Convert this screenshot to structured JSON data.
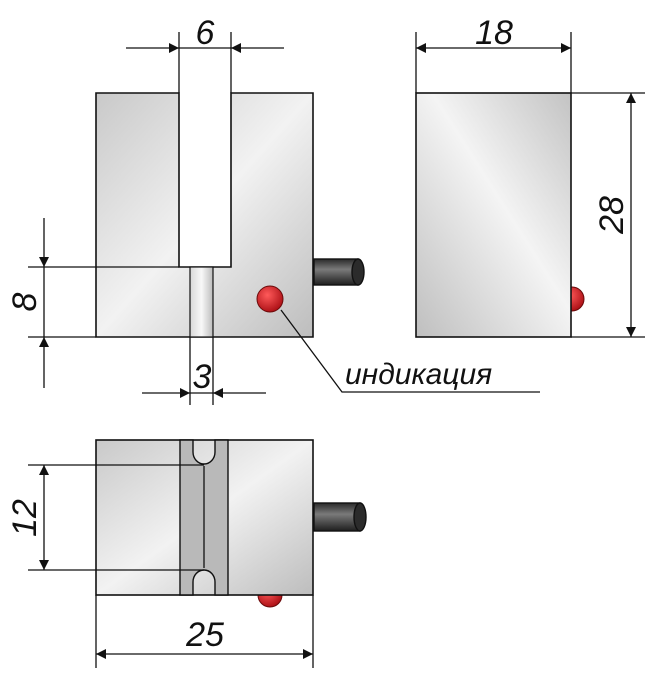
{
  "dimensions": {
    "slot_width": "6",
    "depth": "18",
    "height": "28",
    "slot_bottom_height": "8",
    "groove_width": "3",
    "hole_spacing": "12",
    "length": "25"
  },
  "callout": {
    "indicator_label": "индикация"
  },
  "colors": {
    "body_light": "#e4e4e4",
    "body_dark": "#c4c4c4",
    "groove": "#b8b8b8",
    "led": "#d4141c",
    "cable": "#4a4a4a"
  }
}
